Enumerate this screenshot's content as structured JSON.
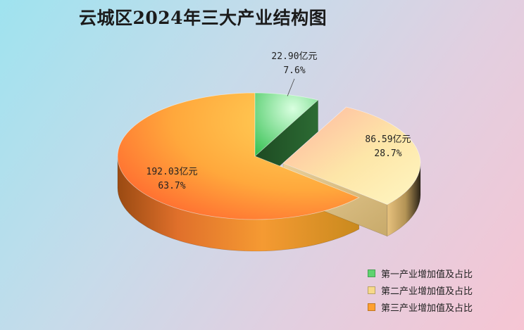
{
  "chart_data": {
    "type": "pie",
    "title": "云城区2024年三大产业结构图",
    "unit": "亿元",
    "series": [
      {
        "name": "第一产业增加值及占比",
        "value": 22.9,
        "value_label": "22.90亿元",
        "percent_label": "7.6%",
        "color": "#5fd36f"
      },
      {
        "name": "第二产业增加值及占比",
        "value": 86.59,
        "value_label": "86.59亿元",
        "percent_label": "28.7%",
        "color": "#f7d98a"
      },
      {
        "name": "第三产业增加值及占比",
        "value": 192.03,
        "value_label": "192.03亿元",
        "percent_label": "63.7%",
        "color": "#ffa030"
      }
    ],
    "legend_position": "bottom-right"
  }
}
